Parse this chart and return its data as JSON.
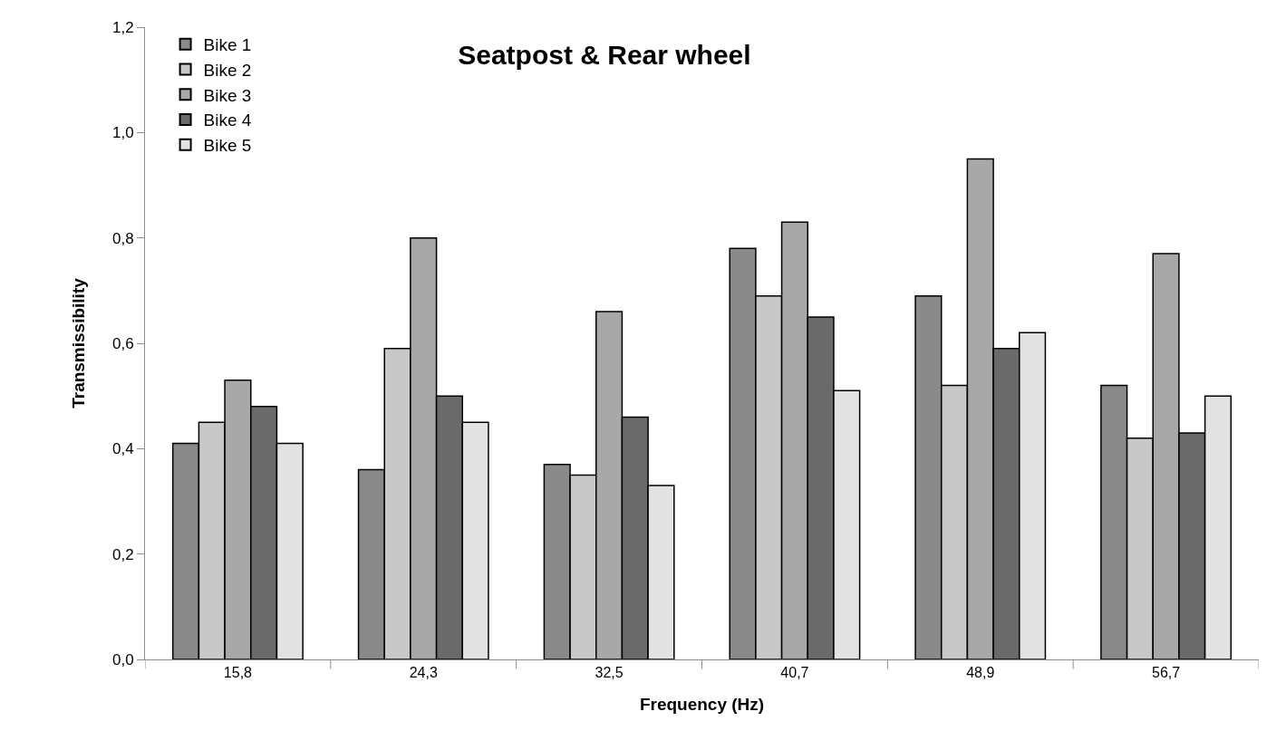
{
  "chart_data": {
    "type": "bar",
    "title": "Seatpost & Rear wheel",
    "xlabel": "Frequency (Hz)",
    "ylabel": "Transmissibility",
    "categories": [
      "15,8",
      "24,3",
      "32,5",
      "40,7",
      "48,9",
      "56,7"
    ],
    "series": [
      {
        "name": "Bike 1",
        "color": "#8a8a8a",
        "values": [
          0.41,
          0.36,
          0.37,
          0.78,
          0.69,
          0.52
        ]
      },
      {
        "name": "Bike 2",
        "color": "#c8c8c8",
        "values": [
          0.45,
          0.59,
          0.35,
          0.69,
          0.52,
          0.42
        ]
      },
      {
        "name": "Bike 3",
        "color": "#a8a8a8",
        "values": [
          0.53,
          0.8,
          0.66,
          0.83,
          0.95,
          0.77
        ]
      },
      {
        "name": "Bike 4",
        "color": "#6a6a6a",
        "values": [
          0.48,
          0.5,
          0.46,
          0.65,
          0.59,
          0.43
        ]
      },
      {
        "name": "Bike 5",
        "color": "#e2e2e2",
        "values": [
          0.41,
          0.45,
          0.33,
          0.51,
          0.62,
          0.5
        ]
      }
    ],
    "ylim": [
      0,
      1.2
    ],
    "yticks": [
      {
        "value": 0,
        "label": "0,0"
      },
      {
        "value": 0.2,
        "label": "0,2"
      },
      {
        "value": 0.4,
        "label": "0,4"
      },
      {
        "value": 0.6,
        "label": "0,6"
      },
      {
        "value": 0.8,
        "label": "0,8"
      },
      {
        "value": 1.0,
        "label": "1,0"
      },
      {
        "value": 1.2,
        "label": "1,2"
      }
    ],
    "legend": "top left"
  }
}
